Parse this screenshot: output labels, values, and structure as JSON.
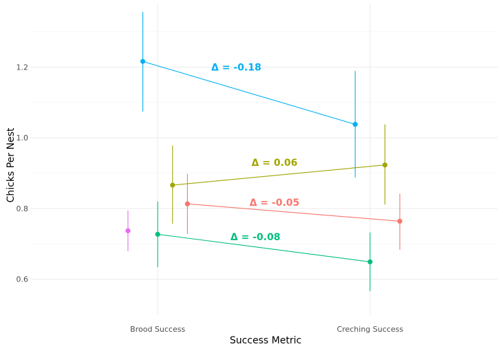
{
  "chart_data": {
    "type": "scatter",
    "subtype": "dodged point-range with connecting lines",
    "xlabel": "Success Metric",
    "ylabel": "Chicks Per Nest",
    "categories": [
      "Brood Success",
      "Creching Success"
    ],
    "ylim": [
      0.5,
      1.38
    ],
    "yticks": [
      0.6,
      0.8,
      1.0,
      1.2
    ],
    "ytick_labels": [
      "0.6",
      "0.8",
      "1.0",
      "1.2"
    ],
    "grid": true,
    "legend": "none",
    "series": [
      {
        "color": "#F8766D",
        "dodge": 0.14,
        "points": [
          {
            "category": "Brood Success",
            "y": 0.813,
            "low": 0.728,
            "high": 0.898
          },
          {
            "category": "Creching Success",
            "y": 0.764,
            "low": 0.683,
            "high": 0.842
          }
        ],
        "delta_label": "Δ =  -0.05",
        "label_at": {
          "category_pos": 1.55,
          "y": 0.817
        }
      },
      {
        "color": "#A3A500",
        "dodge": 0.07,
        "points": [
          {
            "category": "Brood Success",
            "y": 0.866,
            "low": 0.757,
            "high": 0.978
          },
          {
            "category": "Creching Success",
            "y": 0.923,
            "low": 0.811,
            "high": 1.038
          }
        ],
        "delta_label": "Δ =  0.06",
        "label_at": {
          "category_pos": 1.55,
          "y": 0.93
        }
      },
      {
        "color": "#00BF7D",
        "dodge": 0.0,
        "points": [
          {
            "category": "Brood Success",
            "y": 0.727,
            "low": 0.634,
            "high": 0.82
          },
          {
            "category": "Creching Success",
            "y": 0.649,
            "low": 0.566,
            "high": 0.732
          }
        ],
        "delta_label": "Δ =  -0.08",
        "label_at": {
          "category_pos": 1.46,
          "y": 0.72
        }
      },
      {
        "color": "#00B0F6",
        "dodge": -0.07,
        "points": [
          {
            "category": "Brood Success",
            "y": 1.216,
            "low": 1.074,
            "high": 1.356
          },
          {
            "category": "Creching Success",
            "y": 1.038,
            "low": 0.888,
            "high": 1.189
          }
        ],
        "delta_label": "Δ =  -0.18",
        "label_at": {
          "category_pos": 1.37,
          "y": 1.2
        }
      },
      {
        "color": "#E76BF3",
        "dodge": -0.14,
        "points": [
          {
            "category": "Brood Success",
            "y": 0.737,
            "low": 0.679,
            "high": 0.794
          }
        ]
      }
    ]
  }
}
